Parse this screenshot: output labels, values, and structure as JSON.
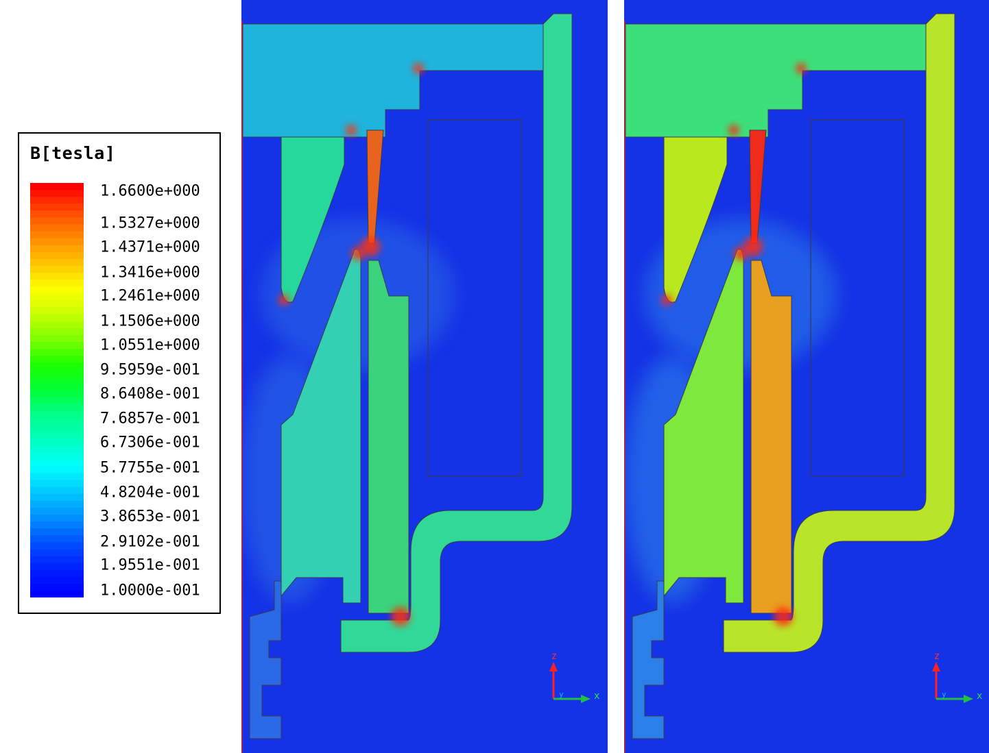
{
  "legend": {
    "title": "B[tesla]",
    "labels": [
      "1.6600e+000",
      "1.5327e+000",
      "1.4371e+000",
      "1.3416e+000",
      "1.2461e+000",
      "1.1506e+000",
      "1.0551e+000",
      "9.5959e-001",
      "8.6408e-001",
      "7.6857e-001",
      "6.7306e-001",
      "5.7755e-001",
      "4.8204e-001",
      "3.8653e-001",
      "2.9102e-001",
      "1.9551e-001",
      "1.0000e-001"
    ],
    "colors_top_to_bottom": [
      "#ff0000",
      "#ff4a00",
      "#ff8a00",
      "#ffc400",
      "#ffff00",
      "#c8ff00",
      "#7cff00",
      "#1cff00",
      "#00ff38",
      "#00ff8a",
      "#00ffc0",
      "#00ffff",
      "#00c8ff",
      "#0090ff",
      "#0050ff",
      "#0020ff",
      "#0000ff"
    ]
  },
  "panels": [
    {
      "name": "left",
      "colors": {
        "background": "#1432e6",
        "yoke_top": "#1eb4dc",
        "pole_upper": "#26d89c",
        "narrow_tooth": "#e8641e",
        "tooth_lower_left": "#34d0b4",
        "long_bar": "#3ad27a",
        "outer_frame": "#32d898",
        "lower_left_region": "#2a6ae6",
        "hotspot": "#ff3010"
      },
      "axis": {
        "z_label": "z",
        "y_label": "y",
        "x_label": "x"
      }
    },
    {
      "name": "right",
      "colors": {
        "background": "#1432e6",
        "yoke_top": "#3ce07a",
        "pole_upper": "#b8e81e",
        "narrow_tooth": "#ee2a1a",
        "tooth_lower_left": "#7ee83c",
        "long_bar": "#e8a020",
        "outer_frame": "#b8e42a",
        "lower_left_region": "#2a80e8",
        "hotspot": "#ff2a14"
      },
      "axis": {
        "z_label": "z",
        "y_label": "y",
        "x_label": "x"
      }
    }
  ]
}
